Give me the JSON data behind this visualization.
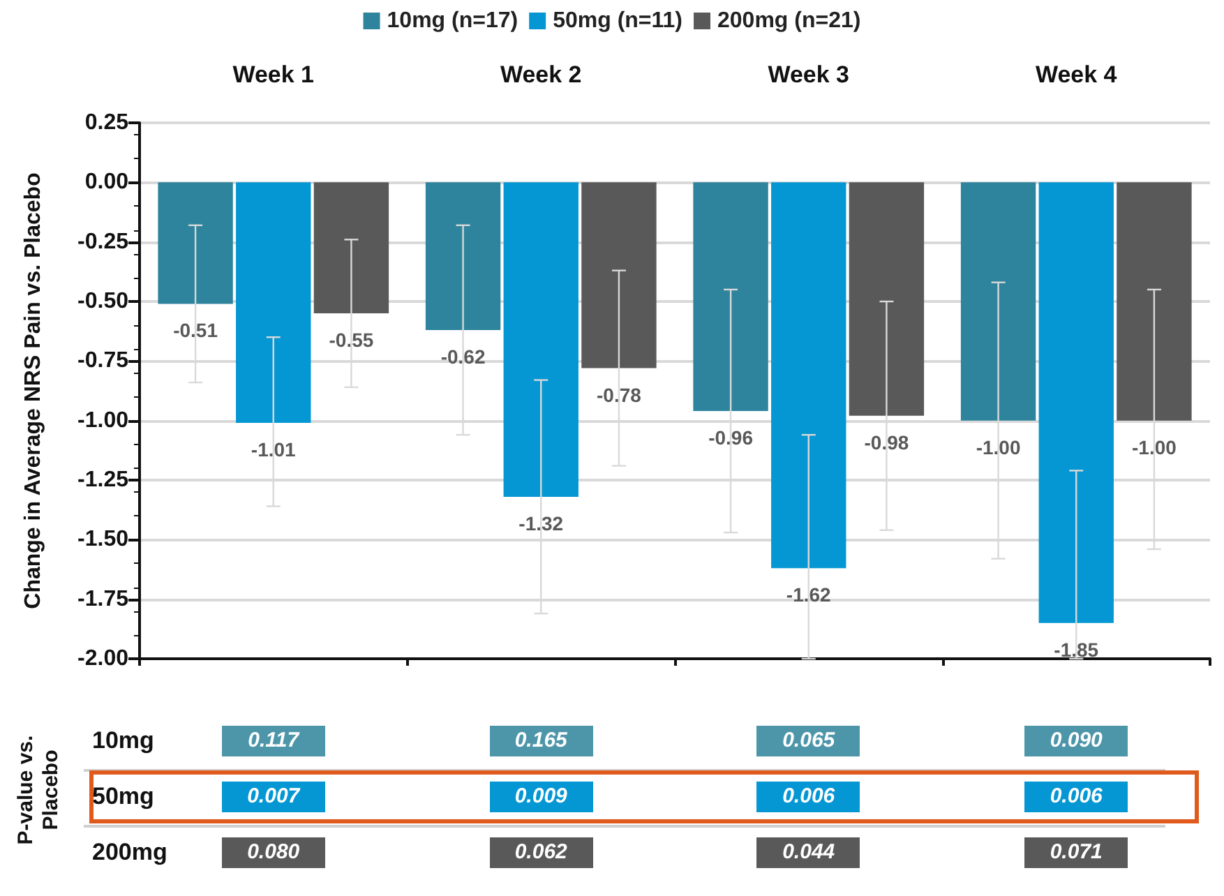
{
  "chart_data": {
    "type": "bar",
    "ylabel": "Change in Average NRS Pain vs. Placebo",
    "categories": [
      "Week 1",
      "Week 2",
      "Week 3",
      "Week 4"
    ],
    "series": [
      {
        "name": "10mg (n=17)",
        "color": "#2e849c",
        "values": [
          -0.51,
          -0.62,
          -0.96,
          -1.0
        ],
        "value_labels": [
          "-0.51",
          "-0.62",
          "-0.96",
          "-1.00"
        ],
        "errors": [
          [
            -0.84,
            -0.18
          ],
          [
            -1.06,
            -0.18
          ],
          [
            -1.47,
            -0.45
          ],
          [
            -1.58,
            -0.42
          ]
        ]
      },
      {
        "name": "50mg (n=11)",
        "color": "#0597d3",
        "values": [
          -1.01,
          -1.32,
          -1.62,
          -1.85
        ],
        "value_labels": [
          "-1.01",
          "-1.32",
          "-1.62",
          "-1.85"
        ],
        "errors": [
          [
            -1.36,
            -0.65
          ],
          [
            -1.81,
            -0.83
          ],
          [
            -2.0,
            -1.06
          ],
          [
            -2.0,
            -1.21
          ]
        ]
      },
      {
        "name": "200mg (n=21)",
        "color": "#595959",
        "values": [
          -0.55,
          -0.78,
          -0.98,
          -1.0
        ],
        "value_labels": [
          "-0.55",
          "-0.78",
          "-0.98",
          "-1.00"
        ],
        "errors": [
          [
            -0.86,
            -0.24
          ],
          [
            -1.19,
            -0.37
          ],
          [
            -1.46,
            -0.5
          ],
          [
            -1.54,
            -0.45
          ]
        ]
      }
    ],
    "ylim": [
      -2.0,
      0.25
    ],
    "yticks": [
      {
        "value": -2.0,
        "label": "-2.00"
      },
      -1.75,
      {
        "value": -1.5,
        "label": "-1.50"
      },
      -1.25,
      {
        "value": -1.0,
        "label": "-1.00"
      },
      -0.75,
      {
        "value": -0.5,
        "label": "-0.50"
      },
      -0.25,
      {
        "value": 0,
        "label": "0.00"
      },
      0.25
    ],
    "grid": "y",
    "legend": "top",
    "annotations": [
      "P-value vs. Placebo",
      "10mg",
      "50mg",
      "200mg",
      "0.117",
      "0.165",
      "0.065",
      "0.090",
      "0.007",
      "0.009",
      "0.006",
      "0.006",
      "0.080",
      "0.062",
      "0.044",
      "0.071"
    ]
  }
}
